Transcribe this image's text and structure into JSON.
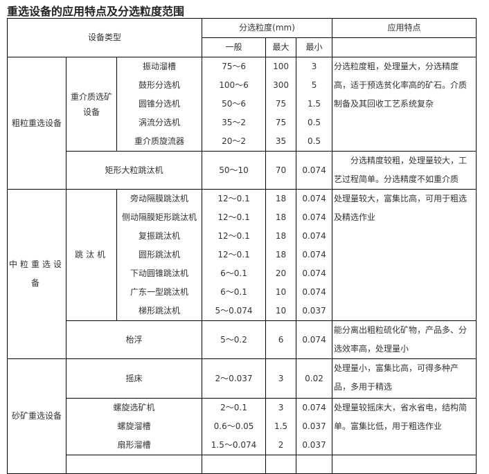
{
  "title": "重选设备的应用特点及分选粒度范围",
  "header": {
    "type": "设备类型",
    "range": "分选粒度(mm)",
    "general": "一般",
    "max": "最大",
    "min": "最小",
    "feature": "应用特点"
  },
  "coarse": {
    "label": "粗粒重选设备",
    "group": "重介质选矿设备",
    "items": [
      {
        "name": "振动溜槽",
        "general": "75～6",
        "max": "100",
        "min": "3"
      },
      {
        "name": "鼓形分选机",
        "general": "100～6",
        "max": "300",
        "min": "5"
      },
      {
        "name": "圆锥分选机",
        "general": "50～6",
        "max": "75",
        "min": "1.5"
      },
      {
        "name": "涡流分选机",
        "general": "35～2",
        "max": "75",
        "min": "0.5"
      },
      {
        "name": "重介质旋流器",
        "general": "20～2",
        "max": "35",
        "min": "0.5"
      }
    ],
    "group_feature": "分选粒度粗，处理量大，分选精度高，适于预选贫化率高的矿石。介质制备及其回收工艺系统复杂",
    "single": {
      "name": "矩形大粒跳汰机",
      "general": "50～10",
      "max": "70",
      "min": "0.074",
      "feature": "　　分选精度较粗，处理量较大，工艺过程简单。分选精度不如重介质"
    }
  },
  "medium": {
    "label": "中粒重选设备",
    "group": "跳汰机",
    "items": [
      {
        "name": "旁动隔膜跳汰机",
        "general": "12～0.1",
        "max": "18",
        "min": "0.074"
      },
      {
        "name": "侧动隔膜矩形跳汰机",
        "general": "12～0.1",
        "max": "18",
        "min": "0.074"
      },
      {
        "name": "复振跳汰机",
        "general": "12～0.1",
        "max": "18",
        "min": "0.074"
      },
      {
        "name": "圆形跳汰机",
        "general": "12～0.1",
        "max": "18",
        "min": "0.074"
      },
      {
        "name": "下动圆锥跳汰机",
        "general": "6～0.1",
        "max": "20",
        "min": "0.074"
      },
      {
        "name": "广东一型跳汰机",
        "general": "6～0.1",
        "max": "10",
        "min": "0.074"
      },
      {
        "name": "梯形跳汰机",
        "general": "5～0.074",
        "max": "10",
        "min": "0.037"
      }
    ],
    "group_feature": "处理量较大，富集比高，可用于粗选及精选作业",
    "single": {
      "name": "枱浮",
      "general": "5～0.2",
      "max": "6",
      "min": "0.074",
      "feature": "能分离出粗粒硫化矿物，产品多、分选效率高，处理量小"
    }
  },
  "sand": {
    "label": "砂矿重选设备",
    "table": {
      "name": "摇床",
      "general": "2～0.037",
      "max": "3",
      "min": "0.02",
      "feature": "处理量小，富集比高，可得多种产品，多用于精选"
    },
    "items": [
      {
        "name": "螺旋选矿机",
        "general": "2～0.1",
        "max": "3",
        "min": "0.074"
      },
      {
        "name": "螺旋溜槽",
        "general": "0.6～0.05",
        "max": "1.5",
        "min": "0.037"
      },
      {
        "name": "扇形溜槽",
        "general": "1.5～0.074",
        "max": "2",
        "min": "0.037"
      }
    ],
    "group_feature": "处理量较摇床大，省水省电，结构简单。富集比低，用于粗选作业"
  }
}
